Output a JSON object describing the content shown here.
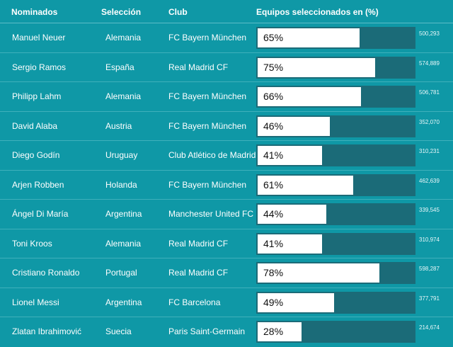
{
  "header": {
    "nominados": "Nominados",
    "seleccion": "Selección",
    "club": "Club",
    "equipos": "Equipos seleccionados en (%)"
  },
  "colors": {
    "background": "#0f98a6",
    "track": "#1b6b78",
    "fill": "#ffffff"
  },
  "chart_data": {
    "type": "bar",
    "title": "",
    "xlabel": "Equipos seleccionados en (%)",
    "xlim": [
      0,
      100
    ],
    "categories": [
      "Manuel Neuer",
      "Sergio Ramos",
      "Philipp Lahm",
      "David Alaba",
      "Diego Godín",
      "Arjen Robben",
      "Ángel Di María",
      "Toni Kroos",
      "Cristiano Ronaldo",
      "Lionel Messi",
      "Zlatan Ibrahimović"
    ],
    "values": [
      65,
      75,
      66,
      46,
      41,
      61,
      44,
      41,
      78,
      49,
      28
    ],
    "rows": [
      {
        "name": "Manuel Neuer",
        "seleccion": "Alemania",
        "club": "FC Bayern München",
        "pct": 65,
        "pct_label": "65%",
        "votes": "500,293"
      },
      {
        "name": "Sergio Ramos",
        "seleccion": "España",
        "club": "Real Madrid CF",
        "pct": 75,
        "pct_label": "75%",
        "votes": "574,889"
      },
      {
        "name": "Philipp Lahm",
        "seleccion": "Alemania",
        "club": "FC Bayern München",
        "pct": 66,
        "pct_label": "66%",
        "votes": "506,781"
      },
      {
        "name": "David Alaba",
        "seleccion": "Austria",
        "club": "FC Bayern München",
        "pct": 46,
        "pct_label": "46%",
        "votes": "352,070"
      },
      {
        "name": "Diego Godín",
        "seleccion": "Uruguay",
        "club": "Club Atlético de Madrid",
        "pct": 41,
        "pct_label": "41%",
        "votes": "310,231"
      },
      {
        "name": "Arjen Robben",
        "seleccion": "Holanda",
        "club": "FC Bayern München",
        "pct": 61,
        "pct_label": "61%",
        "votes": "462,639"
      },
      {
        "name": "Ángel Di María",
        "seleccion": "Argentina",
        "club": "Manchester United FC",
        "pct": 44,
        "pct_label": "44%",
        "votes": "339,545"
      },
      {
        "name": "Toni Kroos",
        "seleccion": "Alemania",
        "club": "Real Madrid CF",
        "pct": 41,
        "pct_label": "41%",
        "votes": "310,974"
      },
      {
        "name": "Cristiano Ronaldo",
        "seleccion": "Portugal",
        "club": "Real Madrid CF",
        "pct": 78,
        "pct_label": "78%",
        "votes": "598,287"
      },
      {
        "name": "Lionel Messi",
        "seleccion": "Argentina",
        "club": "FC Barcelona",
        "pct": 49,
        "pct_label": "49%",
        "votes": "377,791"
      },
      {
        "name": "Zlatan Ibrahimović",
        "seleccion": "Suecia",
        "club": "Paris Saint-Germain",
        "pct": 28,
        "pct_label": "28%",
        "votes": "214,674"
      }
    ]
  }
}
